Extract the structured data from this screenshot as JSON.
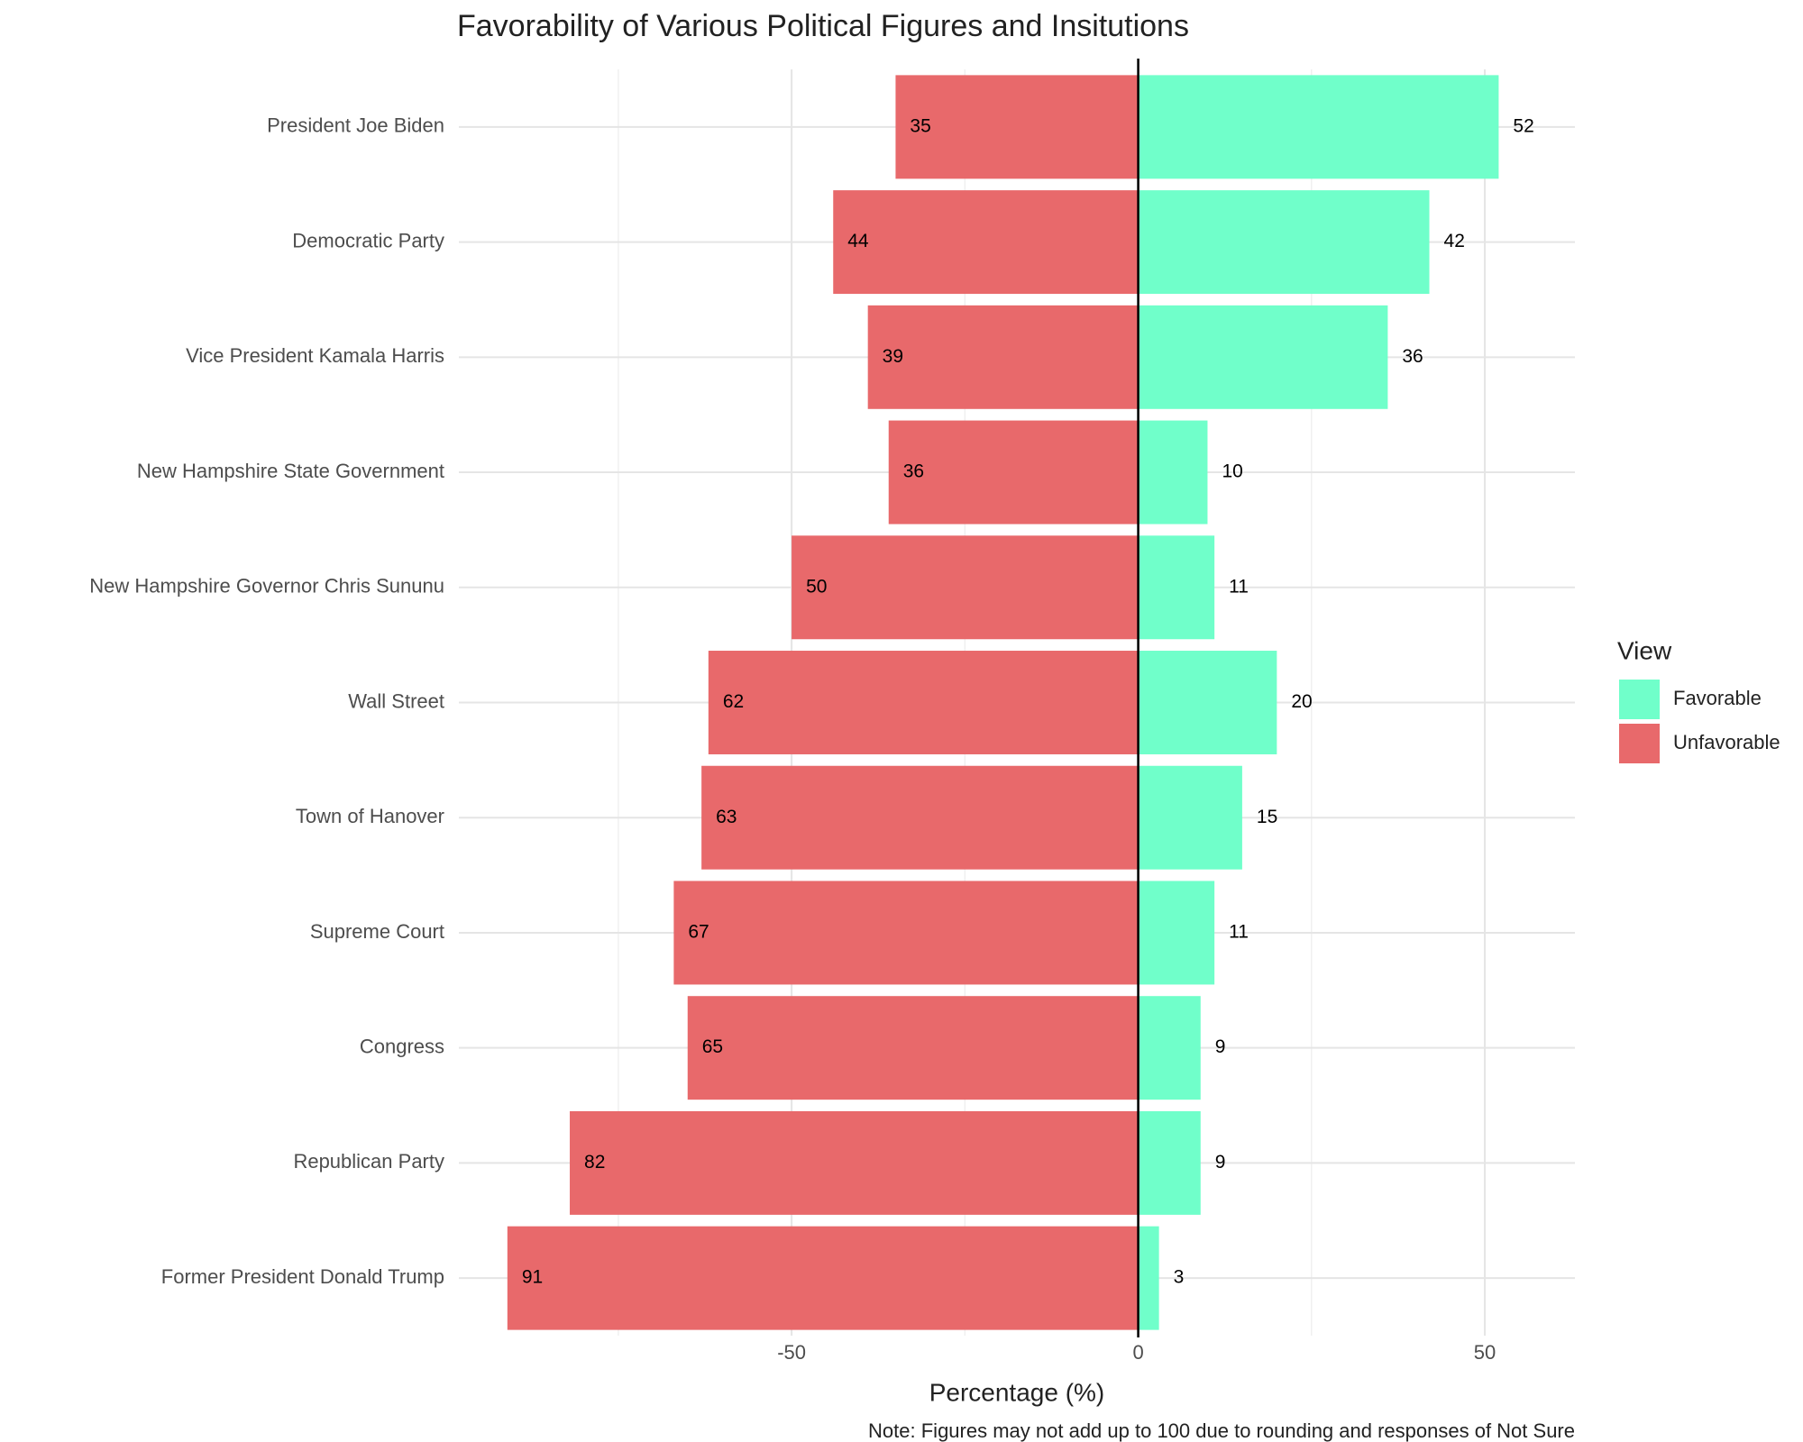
{
  "chart_data": {
    "type": "diverging_bar",
    "title": "Favorability of Various Political Figures and Insitutions",
    "x_label": "Percentage (%)",
    "note": "Note: Figures may not add up to 100 due to rounding and responses of Not Sure",
    "legend_title": "View",
    "legend_position": "right",
    "categories": [
      "President Joe Biden",
      "Democratic Party",
      "Vice President Kamala Harris",
      "New Hampshire State Government",
      "New Hampshire Governor Chris Sununu",
      "Wall Street",
      "Town of Hanover",
      "Supreme Court",
      "Congress",
      "Republican Party",
      "Former President Donald Trump"
    ],
    "series": [
      {
        "name": "Favorable",
        "color": "#70ffca",
        "values": [
          52,
          42,
          36,
          10,
          11,
          20,
          15,
          11,
          9,
          9,
          3
        ]
      },
      {
        "name": "Unfavorable",
        "color": "#e8696b",
        "values": [
          -35,
          -44,
          -39,
          -36,
          -50,
          -62,
          -63,
          -67,
          -65,
          -82,
          -91
        ],
        "value_labels": [
          "35",
          "44",
          "39",
          "36",
          "50",
          "62",
          "63",
          "67",
          "65",
          "82",
          "91"
        ]
      }
    ],
    "xlim": [
      -98,
      63
    ],
    "xticks": [
      -50,
      0,
      50
    ],
    "minor_xticks": [
      -75,
      -25,
      25
    ],
    "grid": true
  }
}
